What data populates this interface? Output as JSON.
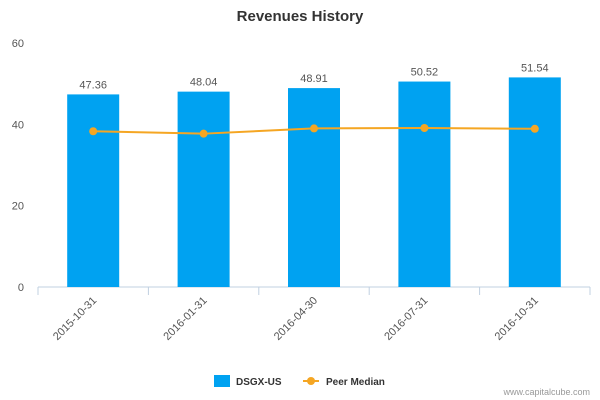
{
  "chart_data": {
    "type": "bar",
    "title": "Revenues History",
    "categories": [
      "2015-10-31",
      "2016-01-31",
      "2016-04-30",
      "2016-07-31",
      "2016-10-31"
    ],
    "series": [
      {
        "name": "DSGX-US",
        "type": "bar",
        "color": "#00a2f1",
        "values": [
          47.36,
          48.04,
          48.91,
          50.52,
          51.54
        ]
      },
      {
        "name": "Peer Median",
        "type": "line",
        "color": "#f5a623",
        "values": [
          38.3,
          37.7,
          39.0,
          39.1,
          38.9
        ]
      }
    ],
    "data_labels": [
      "47.36",
      "48.04",
      "48.91",
      "50.52",
      "51.54"
    ],
    "yticks": [
      "0",
      "20",
      "40",
      "60"
    ],
    "ytick_values": [
      0,
      20,
      40,
      60
    ],
    "ylim": [
      0,
      60
    ],
    "grid": false,
    "legend_position": "bottom-center"
  },
  "credit": "www.capitalcube.com"
}
